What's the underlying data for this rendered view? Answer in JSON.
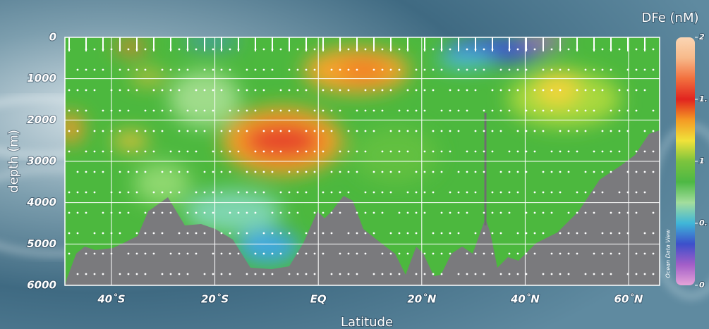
{
  "chart_data": {
    "type": "section",
    "title": "DFe (nM)",
    "xlabel": "Latitude",
    "ylabel": "depth (m)",
    "watermark": "Ocean Data View",
    "xlim": [
      -49,
      66
    ],
    "xticks": [
      {
        "value": -40,
        "label": "40˚S"
      },
      {
        "value": -20,
        "label": "20˚S"
      },
      {
        "value": 0,
        "label": "EQ"
      },
      {
        "value": 20,
        "label": "20˚N"
      },
      {
        "value": 40,
        "label": "40˚N"
      },
      {
        "value": 60,
        "label": "60˚N"
      }
    ],
    "ylim": [
      0,
      6000
    ],
    "y_inverted": true,
    "yticks": [
      0,
      1000,
      2000,
      3000,
      4000,
      5000,
      6000
    ],
    "grid": true,
    "colorbar": {
      "lim": [
        0,
        2
      ],
      "ticks": [
        0,
        {
          "value": 0.5,
          "label": "0."
        },
        1,
        {
          "value": 1.5,
          "label": "1."
        },
        2
      ],
      "colors": [
        "#e6a4d8",
        "#a35ec8",
        "#3c4fcb",
        "#3fb6d8",
        "#a3dd9d",
        "#4db844",
        "#7cc43d",
        "#f0e23a",
        "#f49a24",
        "#e1241f",
        "#f2703e",
        "#f7b98a",
        "#fbd6b4"
      ]
    }
  }
}
